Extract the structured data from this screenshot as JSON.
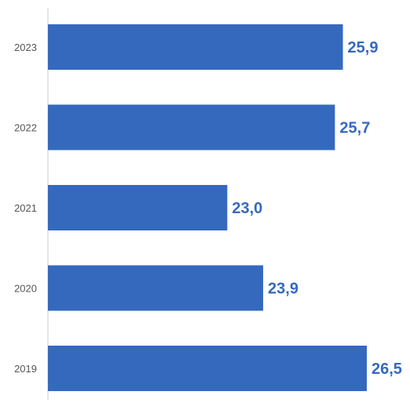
{
  "chart_data": {
    "type": "bar",
    "orientation": "horizontal",
    "categories": [
      "2023",
      "2022",
      "2021",
      "2020",
      "2019"
    ],
    "values": [
      25.9,
      25.7,
      23.0,
      23.9,
      26.5
    ],
    "value_labels": [
      "25,9",
      "25,7",
      "23,0",
      "23,9",
      "26,5"
    ],
    "title": "",
    "xlabel": "",
    "ylabel": "",
    "xlim": [
      18.5,
      26.5
    ],
    "grid": false,
    "legend": "none",
    "bar_color": "#3569bd",
    "label_color": "#3569bd"
  }
}
